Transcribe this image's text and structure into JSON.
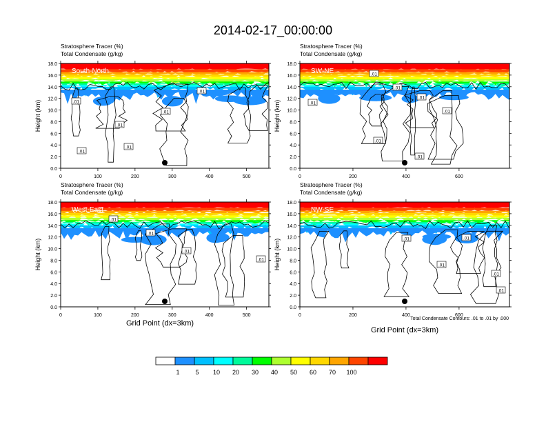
{
  "title": "2014-02-17_00:00:00",
  "ylabel": "Height (km)",
  "xlabel": "Grid Point (dx=3km)",
  "subtitle_line1": "Stratosphere Tracer   (%)",
  "subtitle_line2": "Total Condensate   (g/kg)",
  "contour_note": "Total Condensate Contours: .01 to .01 by .000",
  "colorbar": {
    "levels": [
      "1",
      "5",
      "10",
      "20",
      "30",
      "40",
      "50",
      "60",
      "70",
      "100"
    ],
    "colors": [
      "#ffffff",
      "#1e90ff",
      "#00bfff",
      "#00ffff",
      "#00fa9a",
      "#00ff00",
      "#adff2f",
      "#ffff00",
      "#ffd700",
      "#ffa500",
      "#ff4500",
      "#ff0000"
    ]
  },
  "chart_data": [
    {
      "type": "heatmap",
      "panel": "South-North",
      "xlim": [
        0,
        560
      ],
      "ylim": [
        0,
        18
      ],
      "xticks": [
        "0",
        "100",
        "200",
        "300",
        "400",
        "500"
      ],
      "xtick_values": [
        0,
        100,
        200,
        300,
        400,
        500
      ],
      "yticks": [
        "0.0",
        "2.0",
        "4.0",
        "6.0",
        "8.0",
        "10.0",
        "12.0",
        "14.0",
        "16.0",
        "18.0"
      ],
      "ytick_values": [
        0,
        2,
        4,
        6,
        8,
        10,
        12,
        14,
        16,
        18
      ],
      "contour_labels": [
        ".01",
        ".01",
        ".01",
        ".01",
        ".01",
        ".01"
      ],
      "marker_x": 280
    },
    {
      "type": "heatmap",
      "panel": "SW-NE",
      "xlim": [
        0,
        790
      ],
      "ylim": [
        0,
        18
      ],
      "xticks": [
        "0",
        "200",
        "400",
        "600"
      ],
      "xtick_values": [
        0,
        200,
        400,
        600
      ],
      "yticks": [
        "0.0",
        "2.0",
        "4.0",
        "6.0",
        "8.0",
        "10.0",
        "12.0",
        "14.0",
        "16.0",
        "18.0"
      ],
      "ytick_values": [
        0,
        2,
        4,
        6,
        8,
        10,
        12,
        14,
        16,
        18
      ],
      "contour_labels": [
        ".01",
        ".01",
        ".01",
        ".01",
        ".01",
        ".01",
        ".01"
      ],
      "marker_x": 395
    },
    {
      "type": "heatmap",
      "panel": "West-East",
      "xlim": [
        0,
        560
      ],
      "ylim": [
        0,
        18
      ],
      "xticks": [
        "0",
        "100",
        "200",
        "300",
        "400",
        "500"
      ],
      "xtick_values": [
        0,
        100,
        200,
        300,
        400,
        500
      ],
      "yticks": [
        "0.0",
        "2.0",
        "4.0",
        "6.0",
        "8.0",
        "10.0",
        "12.0",
        "14.0",
        "16.0",
        "18.0"
      ],
      "ytick_values": [
        0,
        2,
        4,
        6,
        8,
        10,
        12,
        14,
        16,
        18
      ],
      "contour_labels": [
        ".01",
        ".01",
        ".01",
        ".01"
      ],
      "marker_x": 280
    },
    {
      "type": "heatmap",
      "panel": "NW-SE",
      "xlim": [
        0,
        790
      ],
      "ylim": [
        0,
        18
      ],
      "xticks": [
        "0",
        "200",
        "400",
        "600"
      ],
      "xtick_values": [
        0,
        200,
        400,
        600
      ],
      "yticks": [
        "0.0",
        "2.0",
        "4.0",
        "6.0",
        "8.0",
        "10.0",
        "12.0",
        "14.0",
        "16.0",
        "18.0"
      ],
      "ytick_values": [
        0,
        2,
        4,
        6,
        8,
        10,
        12,
        14,
        16,
        18
      ],
      "contour_labels": [
        ".01",
        ".01",
        ".01",
        ".01",
        ".01"
      ],
      "marker_x": 395
    }
  ]
}
